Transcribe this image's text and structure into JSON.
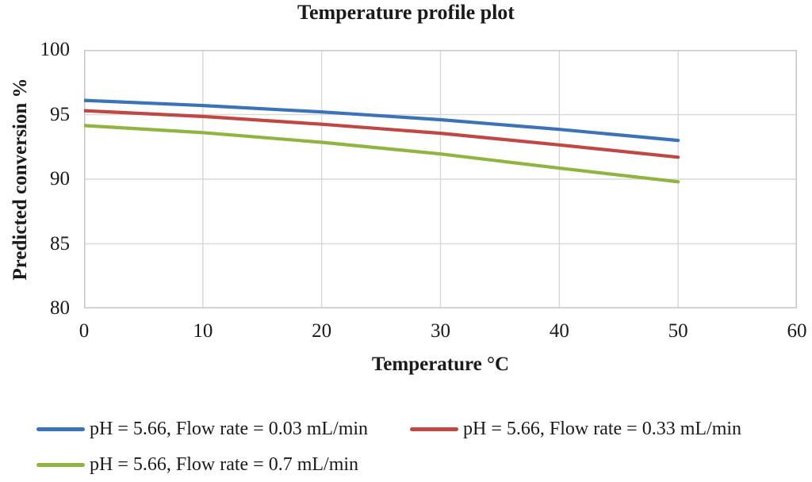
{
  "chart_data": {
    "type": "line",
    "title": "Temperature profile plot",
    "xlabel": "Temperature °C",
    "ylabel": "Predicted conversion %",
    "xlim": [
      0,
      60
    ],
    "ylim": [
      80,
      100
    ],
    "x_ticks": [
      0,
      10,
      20,
      30,
      40,
      50,
      60
    ],
    "y_ticks": [
      80,
      85,
      90,
      95,
      100
    ],
    "grid": true,
    "grid_color": "#d9d9d9",
    "border_color": "#c6c6c6",
    "legend_position": "bottom",
    "x": [
      0,
      10,
      20,
      30,
      40,
      50
    ],
    "series": [
      {
        "name": "pH = 5.66, Flow rate = 0.03 mL/min",
        "color": "#3b73b9",
        "values": [
          96.1,
          95.7,
          95.2,
          94.6,
          93.85,
          93.0
        ]
      },
      {
        "name": "pH = 5.66, Flow rate = 0.33 mL/min",
        "color": "#bf4744",
        "values": [
          95.3,
          94.85,
          94.25,
          93.55,
          92.65,
          91.7
        ]
      },
      {
        "name": "pH = 5.66, Flow rate = 0.7 mL/min",
        "color": "#90b440",
        "values": [
          94.15,
          93.6,
          92.85,
          91.95,
          90.85,
          89.8
        ]
      }
    ]
  }
}
